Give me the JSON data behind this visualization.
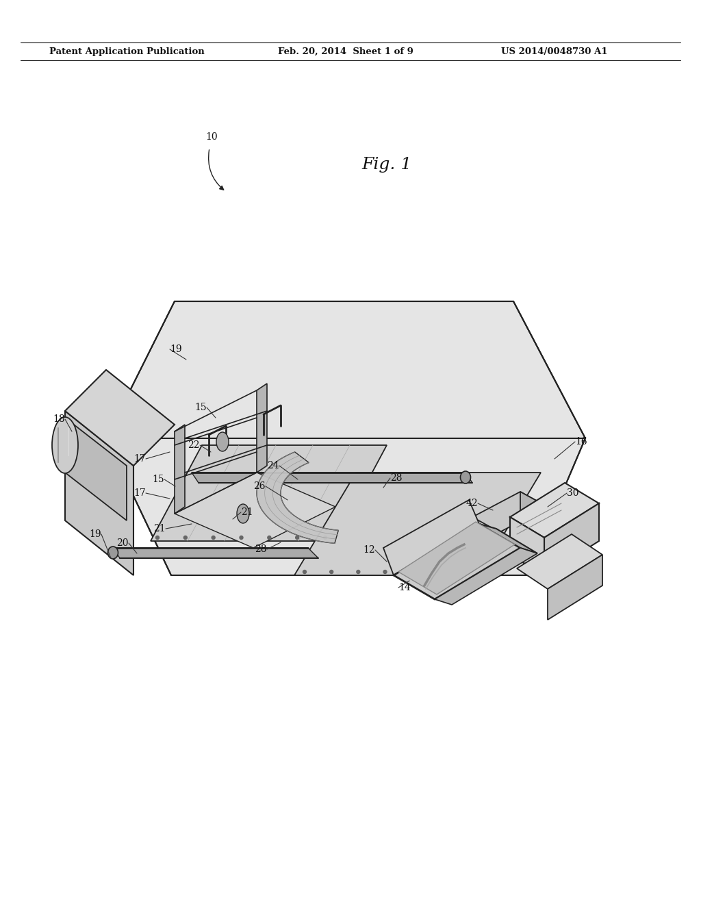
{
  "header_left": "Patent Application Publication",
  "header_mid": "Feb. 20, 2014  Sheet 1 of 9",
  "header_right": "US 2014/0048730 A1",
  "fig_label": "Fig. 1",
  "bg_color": "#ffffff",
  "line_color": "#222222",
  "text_color": "#111111"
}
